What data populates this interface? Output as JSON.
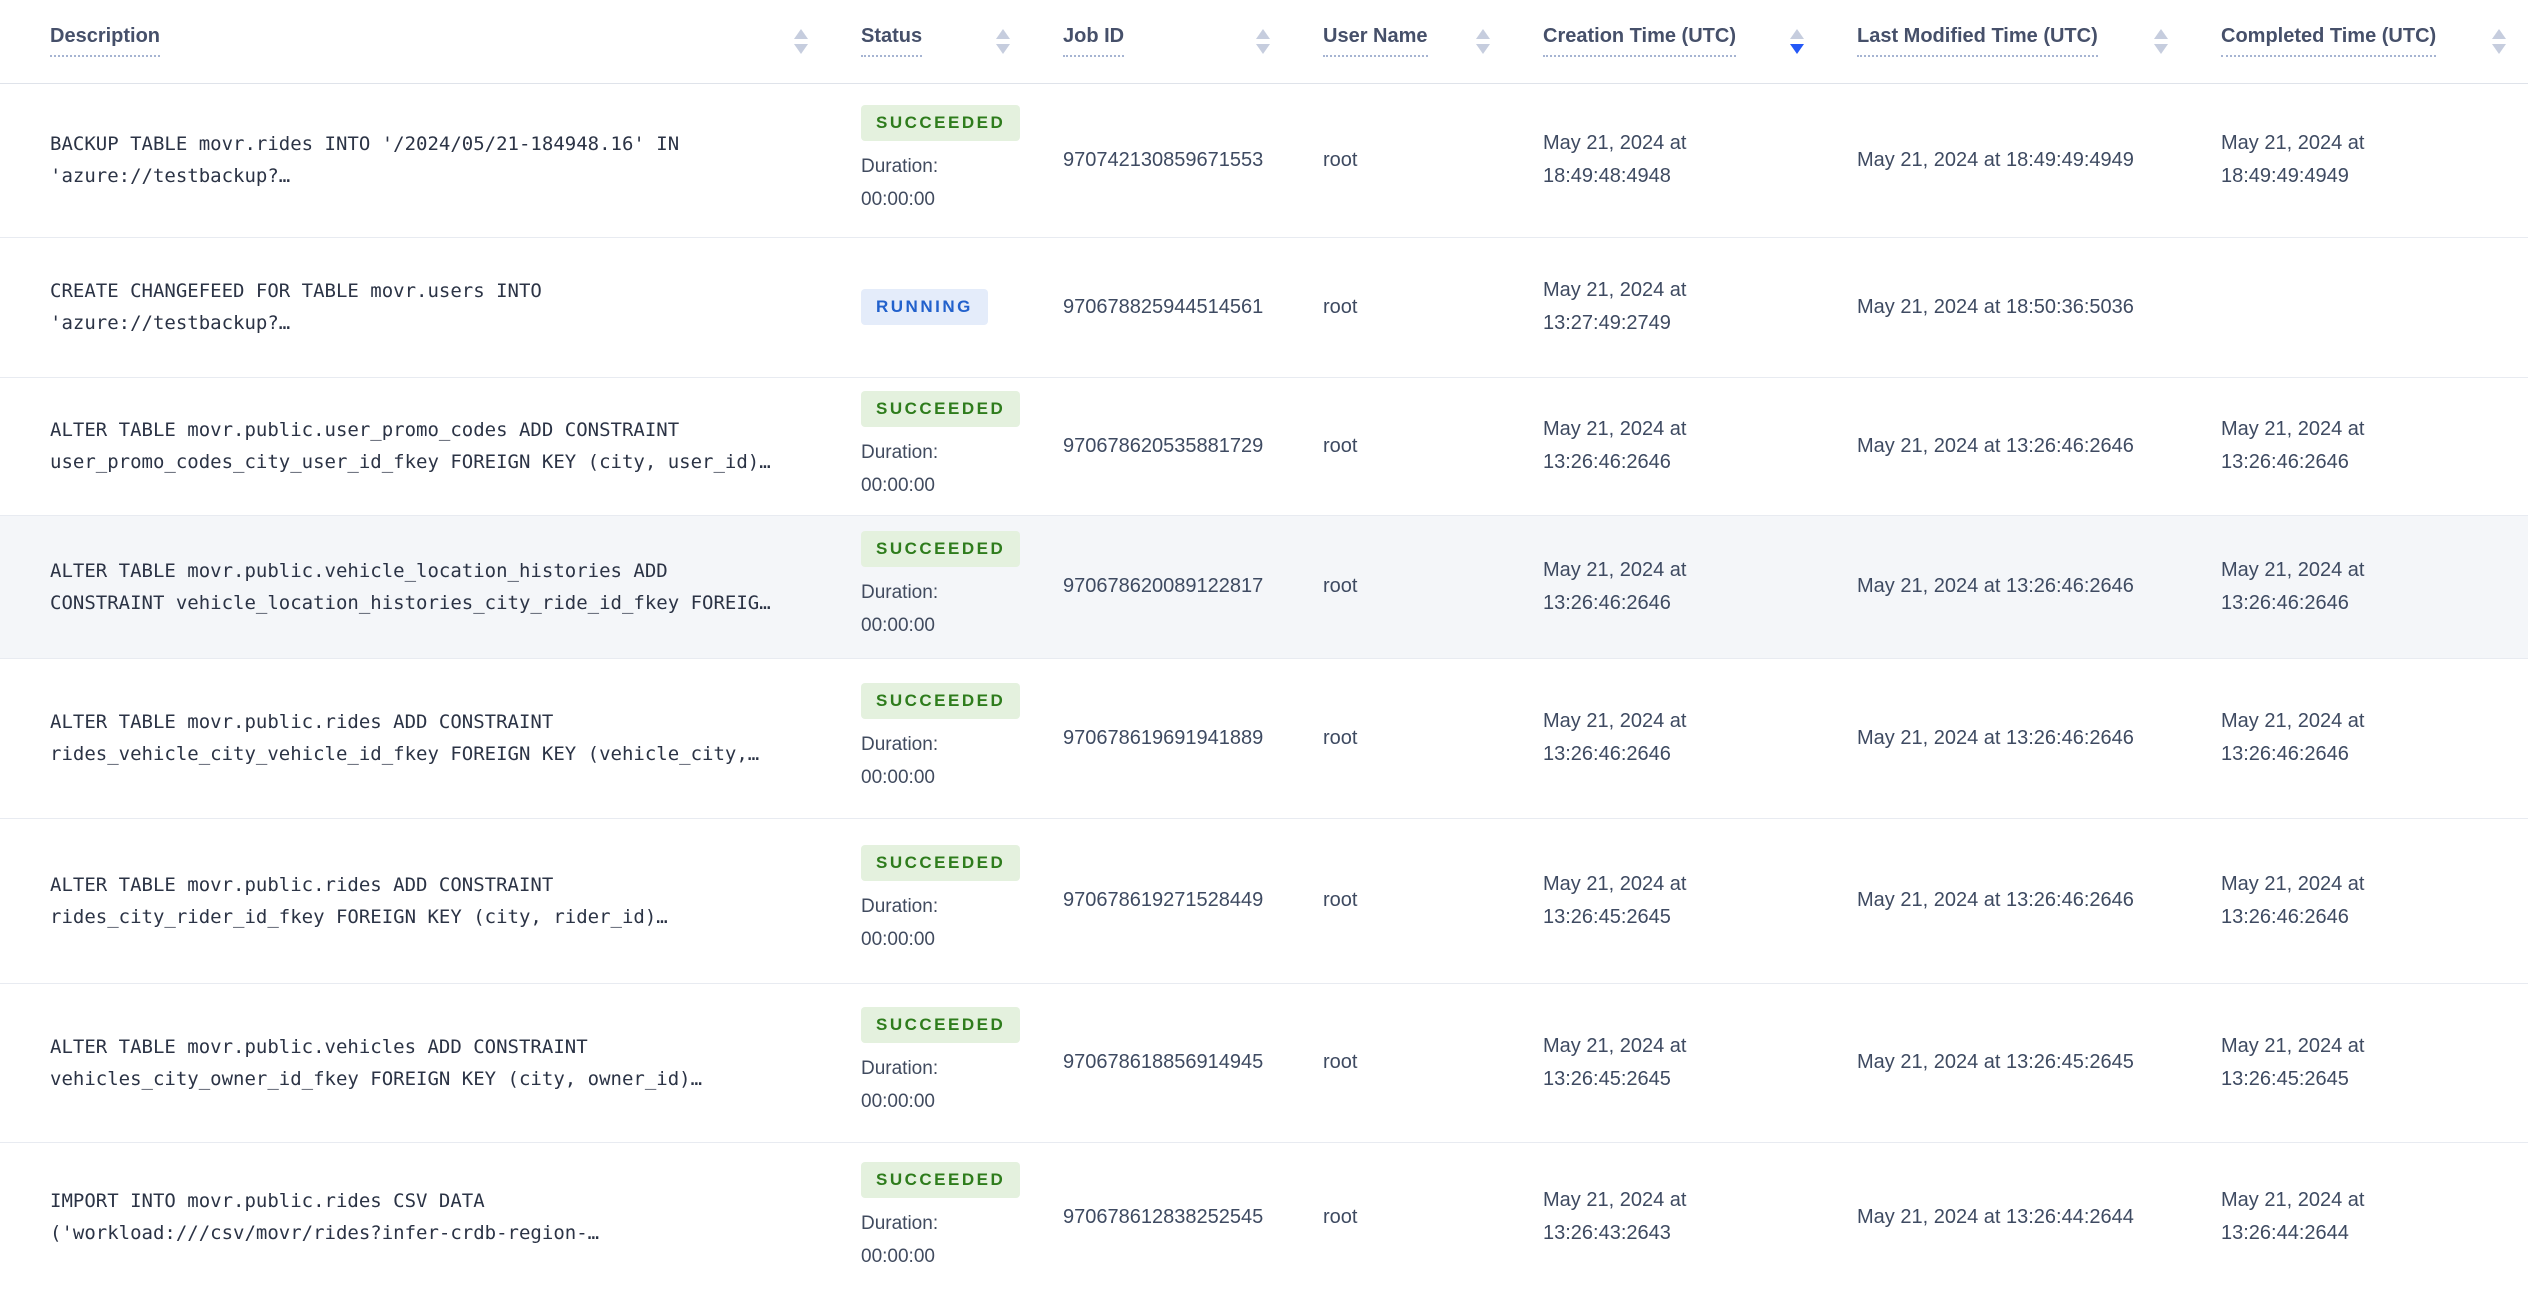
{
  "table": {
    "columns": [
      {
        "label": "Description",
        "sort": "none"
      },
      {
        "label": "Status",
        "sort": "none"
      },
      {
        "label": "Job ID",
        "sort": "none"
      },
      {
        "label": "User Name",
        "sort": "none"
      },
      {
        "label": "Creation Time (UTC)",
        "sort": "desc"
      },
      {
        "label": "Last Modified Time (UTC)",
        "sort": "none"
      },
      {
        "label": "Completed Time (UTC)",
        "sort": "none"
      }
    ],
    "rows": [
      {
        "description": "BACKUP TABLE movr.rides INTO '/2024/05/21-184948.16' IN\n'azure://testbackup?…",
        "status": "SUCCEEDED",
        "duration_label": "Duration:",
        "duration_value": "00:00:00",
        "job_id": "970742130859671553",
        "user_name": "root",
        "creation_time": "May 21, 2024 at\n18:49:48:4948",
        "last_modified_time": "May 21, 2024 at 18:49:49:4949",
        "completed_time": "May 21, 2024 at\n18:49:49:4949",
        "highlighted": false
      },
      {
        "description": "CREATE CHANGEFEED FOR TABLE movr.users INTO\n'azure://testbackup?…",
        "status": "RUNNING",
        "duration_label": "",
        "duration_value": "",
        "job_id": "970678825944514561",
        "user_name": "root",
        "creation_time": "May 21, 2024 at\n13:27:49:2749",
        "last_modified_time": "May 21, 2024 at 18:50:36:5036",
        "completed_time": "",
        "highlighted": false
      },
      {
        "description": "ALTER TABLE movr.public.user_promo_codes ADD CONSTRAINT\nuser_promo_codes_city_user_id_fkey FOREIGN KEY (city, user_id)…",
        "status": "SUCCEEDED",
        "duration_label": "Duration:",
        "duration_value": "00:00:00",
        "job_id": "970678620535881729",
        "user_name": "root",
        "creation_time": "May 21, 2024 at\n13:26:46:2646",
        "last_modified_time": "May 21, 2024 at 13:26:46:2646",
        "completed_time": "May 21, 2024 at\n13:26:46:2646",
        "highlighted": false
      },
      {
        "description": "ALTER TABLE movr.public.vehicle_location_histories ADD\nCONSTRAINT vehicle_location_histories_city_ride_id_fkey FOREIG…",
        "status": "SUCCEEDED",
        "duration_label": "Duration:",
        "duration_value": "00:00:00",
        "job_id": "970678620089122817",
        "user_name": "root",
        "creation_time": "May 21, 2024 at\n13:26:46:2646",
        "last_modified_time": "May 21, 2024 at 13:26:46:2646",
        "completed_time": "May 21, 2024 at\n13:26:46:2646",
        "highlighted": true
      },
      {
        "description": "ALTER TABLE movr.public.rides ADD CONSTRAINT\nrides_vehicle_city_vehicle_id_fkey FOREIGN KEY (vehicle_city,…",
        "status": "SUCCEEDED",
        "duration_label": "Duration:",
        "duration_value": "00:00:00",
        "job_id": "970678619691941889",
        "user_name": "root",
        "creation_time": "May 21, 2024 at\n13:26:46:2646",
        "last_modified_time": "May 21, 2024 at 13:26:46:2646",
        "completed_time": "May 21, 2024 at\n13:26:46:2646",
        "highlighted": false
      },
      {
        "description": "ALTER TABLE movr.public.rides ADD CONSTRAINT\nrides_city_rider_id_fkey FOREIGN KEY (city, rider_id)…",
        "status": "SUCCEEDED",
        "duration_label": "Duration:",
        "duration_value": "00:00:00",
        "job_id": "970678619271528449",
        "user_name": "root",
        "creation_time": "May 21, 2024 at\n13:26:45:2645",
        "last_modified_time": "May 21, 2024 at 13:26:46:2646",
        "completed_time": "May 21, 2024 at\n13:26:46:2646",
        "highlighted": false
      },
      {
        "description": "ALTER TABLE movr.public.vehicles ADD CONSTRAINT\nvehicles_city_owner_id_fkey FOREIGN KEY (city, owner_id)…",
        "status": "SUCCEEDED",
        "duration_label": "Duration:",
        "duration_value": "00:00:00",
        "job_id": "970678618856914945",
        "user_name": "root",
        "creation_time": "May 21, 2024 at\n13:26:45:2645",
        "last_modified_time": "May 21, 2024 at 13:26:45:2645",
        "completed_time": "May 21, 2024 at\n13:26:45:2645",
        "highlighted": false
      },
      {
        "description": "IMPORT INTO movr.public.rides CSV DATA\n('workload:///csv/movr/rides?infer-crdb-region-…",
        "status": "SUCCEEDED",
        "duration_label": "Duration:",
        "duration_value": "00:00:00",
        "job_id": "970678612838252545",
        "user_name": "root",
        "creation_time": "May 21, 2024 at\n13:26:43:2643",
        "last_modified_time": "May 21, 2024 at 13:26:44:2644",
        "completed_time": "May 21, 2024 at\n13:26:44:2644",
        "highlighted": false
      }
    ]
  },
  "status_styles": {
    "SUCCEEDED": {
      "bg": "#e4f1de",
      "fg": "#2e7c1c"
    },
    "RUNNING": {
      "bg": "#e4ecfa",
      "fg": "#2261cc"
    }
  },
  "colors": {
    "sort_active": "#2458f7",
    "sort_inactive": "#c6cdde",
    "row_highlight": "#f4f6f9"
  }
}
